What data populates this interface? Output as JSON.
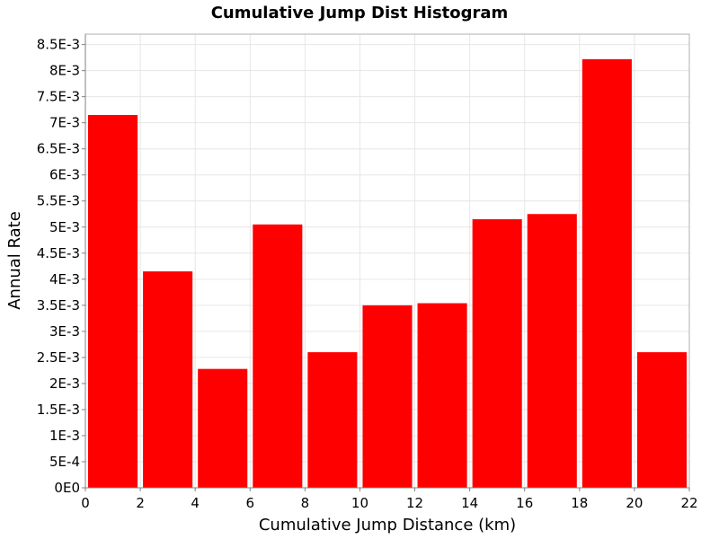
{
  "chart_data": {
    "type": "bar",
    "title": "Cumulative Jump Dist Histogram",
    "xlabel": "Cumulative Jump Distance (km)",
    "ylabel": "Annual Rate",
    "xlim": [
      0,
      22
    ],
    "ylim": [
      0,
      0.0087
    ],
    "bar_color": "#ff0000",
    "x_ticks": [
      {
        "v": 0,
        "label": "0"
      },
      {
        "v": 2,
        "label": "2"
      },
      {
        "v": 4,
        "label": "4"
      },
      {
        "v": 6,
        "label": "6"
      },
      {
        "v": 8,
        "label": "8"
      },
      {
        "v": 10,
        "label": "10"
      },
      {
        "v": 12,
        "label": "12"
      },
      {
        "v": 14,
        "label": "14"
      },
      {
        "v": 16,
        "label": "16"
      },
      {
        "v": 18,
        "label": "18"
      },
      {
        "v": 20,
        "label": "20"
      },
      {
        "v": 22,
        "label": "22"
      }
    ],
    "y_ticks": [
      {
        "v": 0,
        "label": "0E0"
      },
      {
        "v": 0.0005,
        "label": "5E-4"
      },
      {
        "v": 0.001,
        "label": "1E-3"
      },
      {
        "v": 0.0015,
        "label": "1.5E-3"
      },
      {
        "v": 0.002,
        "label": "2E-3"
      },
      {
        "v": 0.0025,
        "label": "2.5E-3"
      },
      {
        "v": 0.003,
        "label": "3E-3"
      },
      {
        "v": 0.0035,
        "label": "3.5E-3"
      },
      {
        "v": 0.004,
        "label": "4E-3"
      },
      {
        "v": 0.0045,
        "label": "4.5E-3"
      },
      {
        "v": 0.005,
        "label": "5E-3"
      },
      {
        "v": 0.0055,
        "label": "5.5E-3"
      },
      {
        "v": 0.006,
        "label": "6E-3"
      },
      {
        "v": 0.0065,
        "label": "6.5E-3"
      },
      {
        "v": 0.007,
        "label": "7E-3"
      },
      {
        "v": 0.0075,
        "label": "7.5E-3"
      },
      {
        "v": 0.008,
        "label": "8E-3"
      },
      {
        "v": 0.0085,
        "label": "8.5E-3"
      }
    ],
    "bins": [
      {
        "x0": 0,
        "x1": 2,
        "value": 0.00715
      },
      {
        "x0": 2,
        "x1": 4,
        "value": 0.00415
      },
      {
        "x0": 4,
        "x1": 6,
        "value": 0.00228
      },
      {
        "x0": 6,
        "x1": 8,
        "value": 0.00505
      },
      {
        "x0": 8,
        "x1": 10,
        "value": 0.0026
      },
      {
        "x0": 10,
        "x1": 12,
        "value": 0.0035
      },
      {
        "x0": 12,
        "x1": 14,
        "value": 0.00354
      },
      {
        "x0": 14,
        "x1": 16,
        "value": 0.00515
      },
      {
        "x0": 16,
        "x1": 18,
        "value": 0.00525
      },
      {
        "x0": 18,
        "x1": 20,
        "value": 0.00822
      },
      {
        "x0": 20,
        "x1": 22,
        "value": 0.0026
      }
    ]
  }
}
